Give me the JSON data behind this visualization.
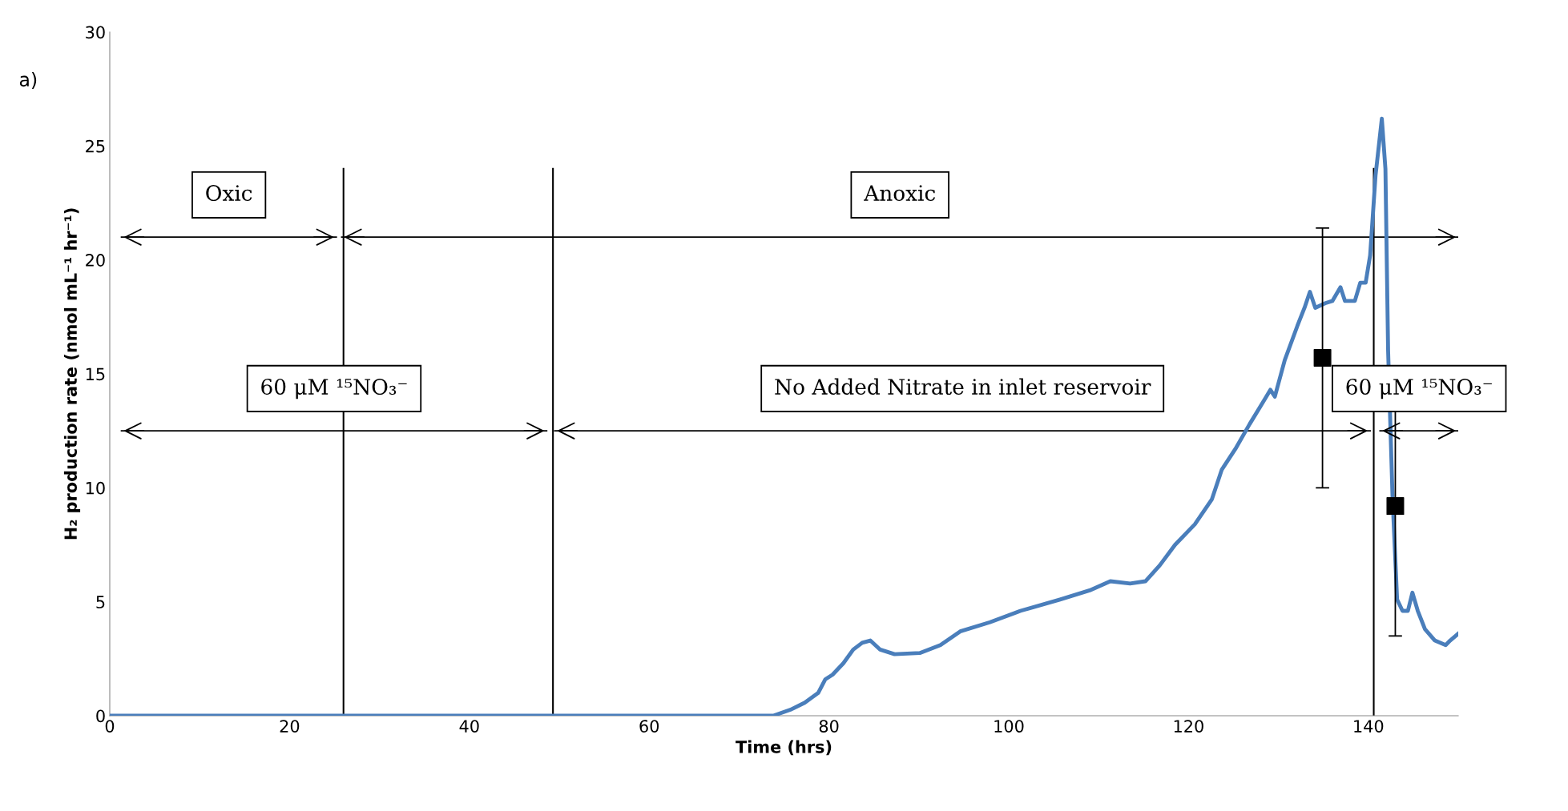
{
  "chart_data": {
    "type": "line",
    "xlabel": "Time (hrs)",
    "ylabel": "H₂ production rate (nmol mL⁻¹ hr⁻¹)",
    "xlim": [
      0,
      150
    ],
    "xticks": [
      0,
      20,
      40,
      60,
      80,
      100,
      120,
      140
    ],
    "ylim": [
      0,
      30
    ],
    "yticks": [
      0,
      5,
      10,
      15,
      20,
      25,
      30
    ],
    "grid": false,
    "legend": false,
    "series": [
      {
        "color": "#4a7ebb",
        "marker": "none",
        "line_style": "solid",
        "x": [
          0,
          73.8,
          75.7,
          77.3,
          78.8,
          79.6,
          80.4,
          81.6,
          82.7,
          83.7,
          84.6,
          85.7,
          87.3,
          90.1,
          92.4,
          94.6,
          97.9,
          101.3,
          105.7,
          109.0,
          111.3,
          113.5,
          115.2,
          116.8,
          118.5,
          120.7,
          122.6,
          123.7,
          125.2,
          126.8,
          128.5,
          129.1,
          129.6,
          130.7,
          132.1,
          132.9,
          133.5,
          134.1,
          135.2,
          136.0,
          136.9,
          137.4,
          138.5,
          139.1,
          139.7,
          140.2,
          140.8,
          141.5,
          141.9,
          142.2,
          142.7,
          143.2,
          143.8,
          144.4,
          144.9,
          145.5,
          146.3,
          147.4,
          148.6,
          149.1,
          150
        ],
        "values": [
          0,
          0,
          0.26,
          0.57,
          1.0,
          1.6,
          1.8,
          2.3,
          2.9,
          3.2,
          3.3,
          2.9,
          2.7,
          2.75,
          3.1,
          3.7,
          4.1,
          4.6,
          5.1,
          5.5,
          5.9,
          5.8,
          5.9,
          6.6,
          7.5,
          8.4,
          9.5,
          10.8,
          11.7,
          12.8,
          13.9,
          14.3,
          14.0,
          15.6,
          17.1,
          17.9,
          18.6,
          17.9,
          18.1,
          18.2,
          18.8,
          18.2,
          18.2,
          19.0,
          19.0,
          20.2,
          23.7,
          26.2,
          24.0,
          16.0,
          9.5,
          5.1,
          4.6,
          4.6,
          5.4,
          4.6,
          3.8,
          3.3,
          3.1,
          3.3,
          3.6
        ]
      },
      {
        "type": "scatter",
        "color": "#000000",
        "marker": "square",
        "x": [
          134.9,
          143.0
        ],
        "values": [
          15.7,
          9.2
        ],
        "errors": [
          5.7,
          5.7
        ]
      },
      {
        "type": "line",
        "name": "Oxic",
        "color": "#000000",
        "marker": "none",
        "line_style": "solid",
        "x": [
          1.3,
          25.2
        ],
        "values": [
          21,
          21
        ]
      },
      {
        "type": "line",
        "name": "Anoxic",
        "color": "#000000",
        "marker": "none",
        "line_style": "solid",
        "x": [
          25.8,
          150
        ],
        "values": [
          21,
          21
        ]
      },
      {
        "type": "line",
        "name": "60 μM ¹⁵NO₃⁻",
        "color": "#000000",
        "marker": "none",
        "line_style": "solid",
        "x": [
          1.3,
          48.6
        ],
        "values": [
          12.5,
          12.5
        ]
      },
      {
        "type": "line",
        "name": "No Added Nitrate in inlet reservoir",
        "color": "#000000",
        "marker": "none",
        "line_style": "solid",
        "x": [
          49.5,
          140.2
        ],
        "values": [
          12.5,
          12.5
        ]
      },
      {
        "type": "line",
        "name": "60 μM ¹⁵NO₃⁻",
        "color": "#000000",
        "marker": "none",
        "line_style": "solid",
        "x": [
          141.3,
          150
        ],
        "values": [
          12.5,
          12.5
        ]
      }
    ],
    "ref_lines": [
      {
        "axis": "x",
        "value": 26,
        "color": "#000000",
        "line_style": "solid"
      },
      {
        "axis": "x",
        "value": 49.3,
        "color": "#000000",
        "line_style": "solid"
      },
      {
        "axis": "x",
        "value": 140.6,
        "color": "#000000",
        "line_style": "solid"
      }
    ],
    "annotations": [
      "a)"
    ]
  }
}
